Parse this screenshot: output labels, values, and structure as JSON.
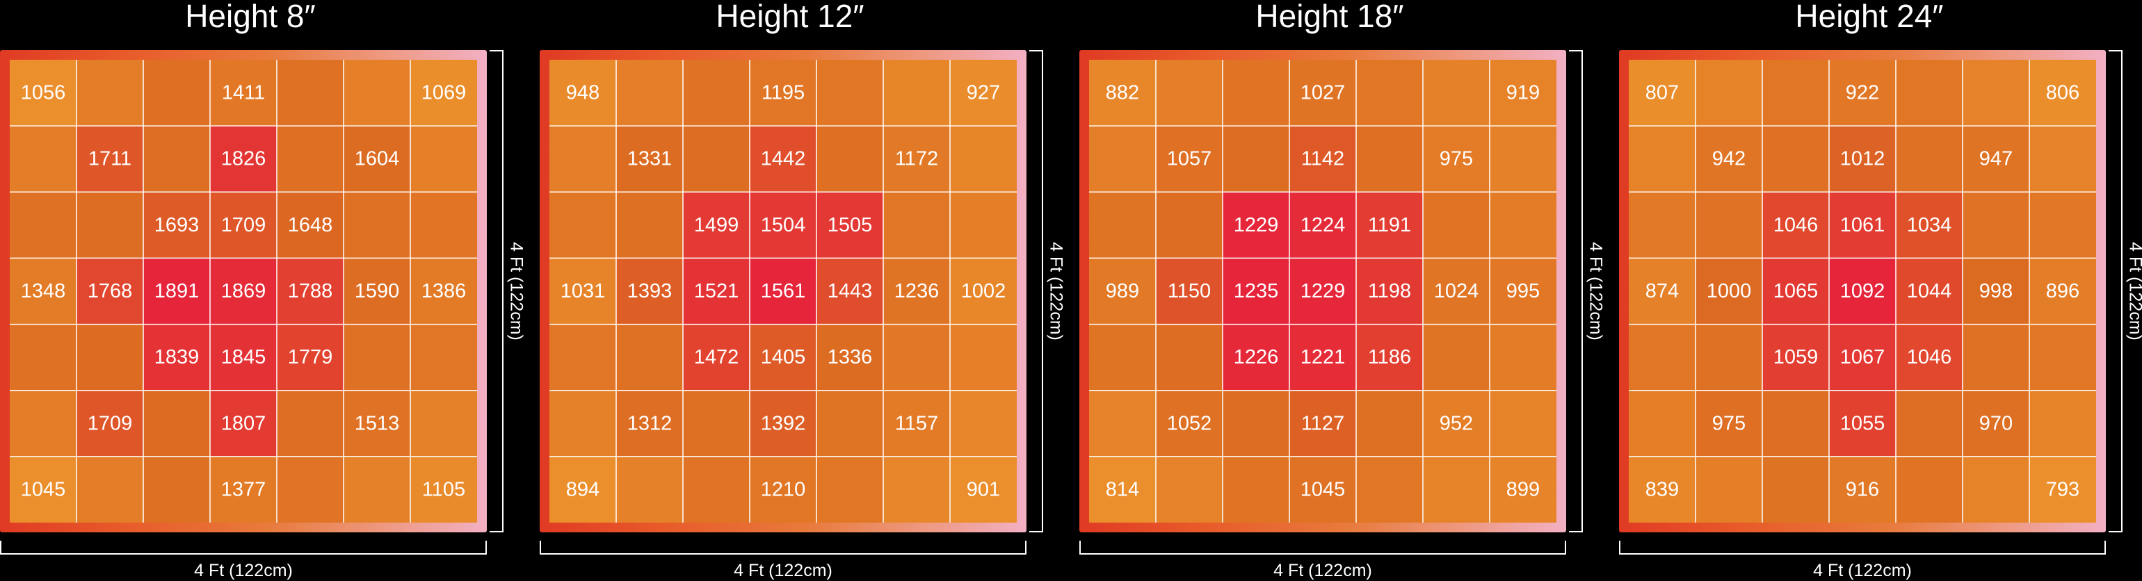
{
  "colors": {
    "background": "#000000",
    "low": "#eb8f2c",
    "mid": "#dc6a22",
    "high": "#e6243a",
    "grid_line": "#ffffff",
    "text": "#ffffff"
  },
  "chart_data": [
    {
      "type": "heatmap",
      "title": "Height 8″",
      "xlabel": "4 Ft (122cm)",
      "ylabel": "4 Ft (122cm)",
      "grid": true,
      "rows": 7,
      "cols": 7,
      "values": [
        [
          1056,
          null,
          null,
          1411,
          null,
          null,
          1069
        ],
        [
          null,
          1711,
          null,
          1826,
          null,
          1604,
          null
        ],
        [
          null,
          null,
          1693,
          1709,
          1648,
          null,
          null
        ],
        [
          1348,
          1768,
          1891,
          1869,
          1788,
          1590,
          1386
        ],
        [
          null,
          null,
          1839,
          1845,
          1779,
          null,
          null
        ],
        [
          null,
          1709,
          null,
          1807,
          null,
          1513,
          null
        ],
        [
          1045,
          null,
          null,
          1377,
          null,
          null,
          1105
        ]
      ]
    },
    {
      "type": "heatmap",
      "title": "Height 12″",
      "xlabel": "4 Ft (122cm)",
      "ylabel": "4 Ft (122cm)",
      "grid": true,
      "rows": 7,
      "cols": 7,
      "values": [
        [
          948,
          null,
          null,
          1195,
          null,
          null,
          927
        ],
        [
          null,
          1331,
          null,
          1442,
          null,
          1172,
          null
        ],
        [
          null,
          null,
          1499,
          1504,
          1505,
          null,
          null
        ],
        [
          1031,
          1393,
          1521,
          1561,
          1443,
          1236,
          1002
        ],
        [
          null,
          null,
          1472,
          1405,
          1336,
          null,
          null
        ],
        [
          null,
          1312,
          null,
          1392,
          null,
          1157,
          null
        ],
        [
          894,
          null,
          null,
          1210,
          null,
          null,
          901
        ]
      ]
    },
    {
      "type": "heatmap",
      "title": "Height 18″",
      "xlabel": "4 Ft (122cm)",
      "ylabel": "4 Ft (122cm)",
      "grid": true,
      "rows": 7,
      "cols": 7,
      "values": [
        [
          882,
          null,
          null,
          1027,
          null,
          null,
          919
        ],
        [
          null,
          1057,
          null,
          1142,
          null,
          975,
          null
        ],
        [
          null,
          null,
          1229,
          1224,
          1191,
          null,
          null
        ],
        [
          989,
          1150,
          1235,
          1229,
          1198,
          1024,
          995
        ],
        [
          null,
          null,
          1226,
          1221,
          1186,
          null,
          null
        ],
        [
          null,
          1052,
          null,
          1127,
          null,
          952,
          null
        ],
        [
          814,
          null,
          null,
          1045,
          null,
          null,
          899
        ]
      ]
    },
    {
      "type": "heatmap",
      "title": "Height 24″",
      "xlabel": "4 Ft (122cm)",
      "ylabel": "4 Ft (122cm)",
      "grid": true,
      "rows": 7,
      "cols": 7,
      "values": [
        [
          807,
          null,
          null,
          922,
          null,
          null,
          806
        ],
        [
          null,
          942,
          null,
          1012,
          null,
          947,
          null
        ],
        [
          null,
          null,
          1046,
          1061,
          1034,
          null,
          null
        ],
        [
          874,
          1000,
          1065,
          1092,
          1044,
          998,
          896
        ],
        [
          null,
          null,
          1059,
          1067,
          1046,
          null,
          null
        ],
        [
          null,
          975,
          null,
          1055,
          null,
          970,
          null
        ],
        [
          839,
          null,
          null,
          916,
          null,
          null,
          793
        ]
      ]
    }
  ]
}
